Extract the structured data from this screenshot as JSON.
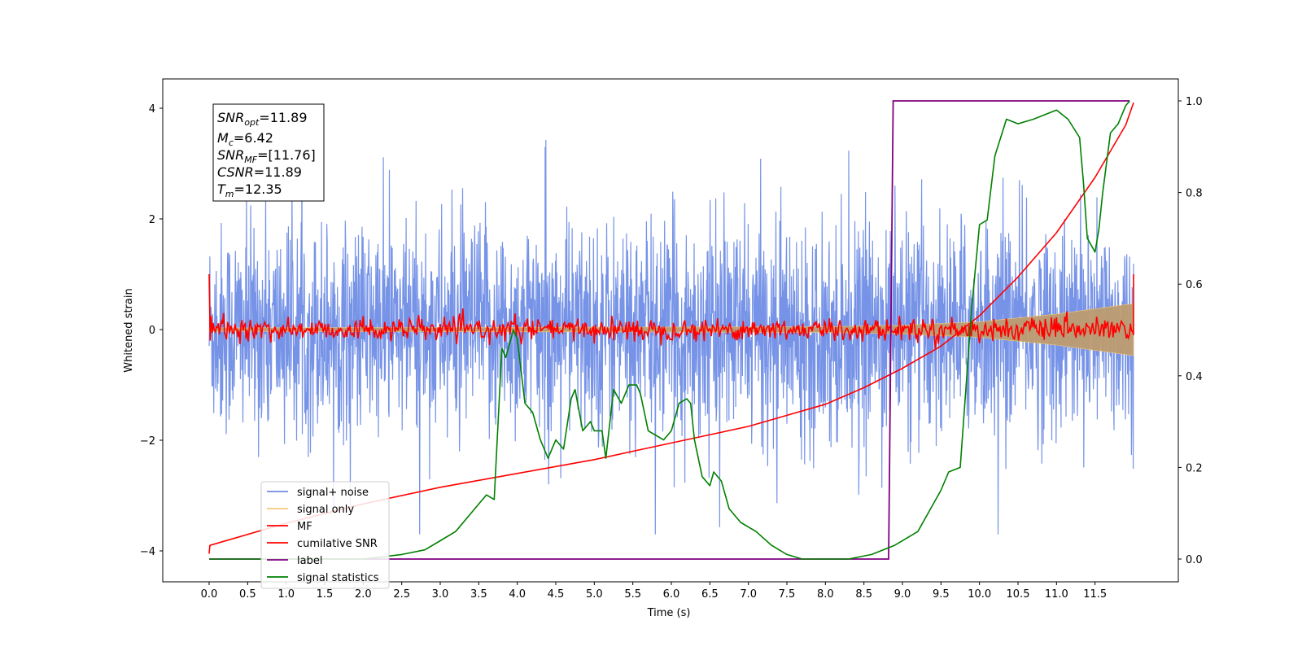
{
  "chart_data": {
    "type": "line",
    "xlabel": "Time (s)",
    "ylabel": "Whitened strain",
    "xlim": [
      -0.6,
      12.6
    ],
    "ylim_left": [
      -4.55,
      4.55
    ],
    "ylim_right": [
      -0.05,
      1.05
    ],
    "x_ticks": [
      "0.0",
      "0.5",
      "1.0",
      "1.5",
      "2.0",
      "2.5",
      "3.0",
      "3.5",
      "4.0",
      "4.5",
      "5.0",
      "5.5",
      "6.0",
      "6.5",
      "7.0",
      "7.5",
      "8.0",
      "8.5",
      "9.0",
      "9.5",
      "10.0",
      "10.5",
      "11.0",
      "11.5"
    ],
    "y_ticks_left": [
      "4",
      "2",
      "0",
      "−2",
      "−4"
    ],
    "y_ticks_right": [
      "1.0",
      "0.8",
      "0.6",
      "0.4",
      "0.2",
      "0.0"
    ],
    "info_box": {
      "snr_opt": "SNR_opt=11.89",
      "mc": "M_c=6.42",
      "snr_mf": "SNR_MF=[11.76]",
      "csnr": "CSNR=11.89",
      "tm": "T_m=12.35"
    },
    "series": [
      {
        "name": "signal+ noise",
        "axis": "left",
        "color": "#6f8de6",
        "x_range": [
          0.0,
          12.0
        ],
        "amplitude_band": [
          -3.7,
          4.1
        ]
      },
      {
        "name": "signal only",
        "axis": "left",
        "color": "#f5c87a",
        "envelope": {
          "x": [
            0.0,
            8.0,
            9.0,
            10.0,
            11.0,
            12.0
          ],
          "amp": [
            0.03,
            0.05,
            0.08,
            0.14,
            0.28,
            0.47
          ]
        }
      },
      {
        "name": "MF",
        "axis": "left",
        "color": "#ff0000",
        "start_value": 1.0,
        "end_value": 1.0,
        "baseline": 0.0,
        "noise": 0.1
      },
      {
        "name": "cumilative SNR",
        "axis": "left",
        "color": "#ff0000",
        "x": [
          0.0,
          0.01,
          1.0,
          2.0,
          3.0,
          4.0,
          5.0,
          6.0,
          7.0,
          8.0,
          8.5,
          9.0,
          9.5,
          10.0,
          10.5,
          11.0,
          11.5,
          11.9,
          12.0
        ],
        "y": [
          -4.05,
          -3.9,
          -3.5,
          -3.15,
          -2.85,
          -2.6,
          -2.35,
          -2.05,
          -1.75,
          -1.35,
          -1.05,
          -0.7,
          -0.3,
          0.25,
          0.95,
          1.75,
          2.75,
          3.7,
          4.1
        ]
      },
      {
        "name": "label",
        "axis": "right",
        "color": "#800080",
        "x": [
          0.0,
          8.82,
          8.88,
          11.95
        ],
        "y": [
          0.0,
          0.0,
          1.0,
          1.0
        ]
      },
      {
        "name": "signal statistics",
        "axis": "right",
        "color": "#008000",
        "x": [
          0.0,
          1.0,
          2.0,
          2.5,
          2.8,
          3.0,
          3.2,
          3.5,
          3.6,
          3.7,
          3.8,
          3.85,
          3.95,
          4.0,
          4.1,
          4.2,
          4.3,
          4.4,
          4.5,
          4.6,
          4.7,
          4.75,
          4.85,
          4.95,
          5.0,
          5.1,
          5.15,
          5.25,
          5.35,
          5.45,
          5.5,
          5.55,
          5.6,
          5.7,
          5.8,
          5.9,
          6.0,
          6.1,
          6.2,
          6.25,
          6.3,
          6.4,
          6.5,
          6.55,
          6.65,
          6.75,
          6.9,
          7.1,
          7.3,
          7.5,
          7.7,
          8.0,
          8.3,
          8.6,
          8.9,
          9.2,
          9.5,
          9.6,
          9.75,
          9.9,
          10.0,
          10.1,
          10.2,
          10.35,
          10.5,
          10.7,
          10.85,
          11.0,
          11.15,
          11.3,
          11.35,
          11.4,
          11.5,
          11.55,
          11.6,
          11.7,
          11.8,
          11.9,
          11.95
        ],
        "y": [
          0.0,
          0.0,
          0.0,
          0.01,
          0.02,
          0.04,
          0.06,
          0.12,
          0.14,
          0.13,
          0.46,
          0.44,
          0.5,
          0.48,
          0.34,
          0.32,
          0.26,
          0.22,
          0.26,
          0.24,
          0.35,
          0.37,
          0.28,
          0.3,
          0.28,
          0.28,
          0.22,
          0.37,
          0.34,
          0.38,
          0.38,
          0.38,
          0.36,
          0.28,
          0.27,
          0.26,
          0.28,
          0.34,
          0.35,
          0.34,
          0.26,
          0.18,
          0.16,
          0.19,
          0.17,
          0.11,
          0.08,
          0.06,
          0.03,
          0.01,
          0.0,
          0.0,
          0.0,
          0.01,
          0.03,
          0.06,
          0.15,
          0.19,
          0.2,
          0.55,
          0.73,
          0.74,
          0.88,
          0.96,
          0.95,
          0.96,
          0.97,
          0.98,
          0.96,
          0.92,
          0.82,
          0.7,
          0.67,
          0.72,
          0.8,
          0.93,
          0.95,
          0.99,
          1.0
        ]
      }
    ],
    "legend": {
      "position": "lower-left",
      "entries": [
        "signal+ noise",
        "signal only",
        "MF",
        "cumilative SNR",
        "label",
        "signal statistics"
      ]
    }
  }
}
